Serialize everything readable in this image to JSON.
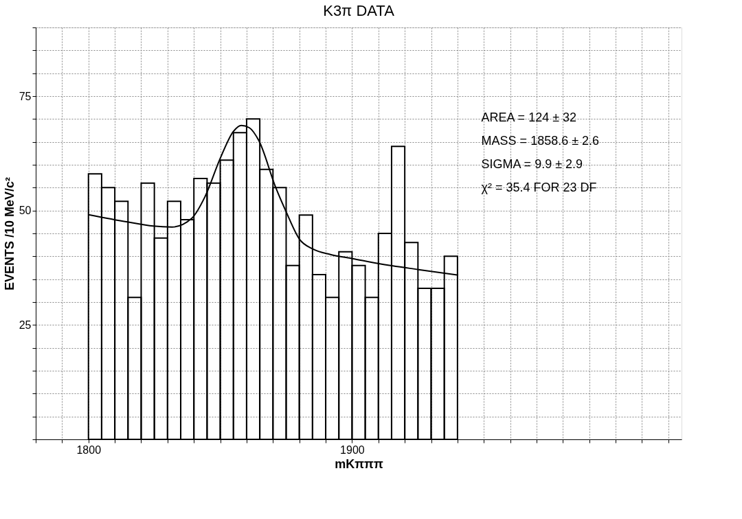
{
  "chart_data": {
    "type": "histogram",
    "title": "K3π DATA",
    "xlabel": "mKπππ",
    "ylabel": "EVENTS /10 MeV/c²",
    "bins": [
      1800,
      1805,
      1810,
      1815,
      1820,
      1825,
      1830,
      1835,
      1840,
      1845,
      1850,
      1855,
      1860,
      1865,
      1870,
      1875,
      1880,
      1885,
      1890,
      1895,
      1900,
      1905,
      1910,
      1915,
      1920,
      1925,
      1930,
      1935,
      1940
    ],
    "values": [
      58,
      55,
      52,
      31,
      56,
      44,
      52,
      48,
      57,
      56,
      61,
      67,
      70,
      59,
      55,
      38,
      49,
      36,
      31,
      41,
      38,
      31,
      45,
      64,
      43,
      33,
      33,
      40
    ],
    "color": "#000000",
    "series": [
      {
        "type": "line",
        "color": "#000000",
        "x": [
          1800,
          1814.8,
          1824.6,
          1831.7,
          1839.2,
          1844.2,
          1850,
          1855,
          1858,
          1861,
          1864.7,
          1871,
          1875.1,
          1880.1,
          1885.1,
          1891.8,
          1900.2,
          1910.2,
          1925.2,
          1940.3
        ],
        "values": [
          49.1,
          47.5,
          46.6,
          46.4,
          48.3,
          53,
          61.4,
          67.3,
          68.6,
          68.1,
          65.2,
          55.1,
          49.6,
          43.7,
          41.6,
          40.4,
          39.5,
          38.4,
          37.1,
          35.9
        ]
      }
    ],
    "xlim": [
      1780,
      2025
    ],
    "ylim": [
      0,
      90
    ],
    "xticks": [
      {
        "value": 1780,
        "label": null
      },
      {
        "value": 1790,
        "label": null
      },
      1800,
      {
        "value": 1810,
        "label": null
      },
      {
        "value": 1820,
        "label": null
      },
      {
        "value": 1830,
        "label": null
      },
      {
        "value": 1840,
        "label": null
      },
      {
        "value": 1850,
        "label": null
      },
      {
        "value": 1860,
        "label": null
      },
      {
        "value": 1870,
        "label": null
      },
      {
        "value": 1880,
        "label": null
      },
      {
        "value": 1890,
        "label": null
      },
      1900,
      {
        "value": 1910,
        "label": null
      },
      {
        "value": 1920,
        "label": null
      },
      {
        "value": 1930,
        "label": null
      },
      {
        "value": 1940,
        "label": null
      },
      {
        "value": 1950,
        "label": null
      },
      {
        "value": 1960,
        "label": null
      },
      {
        "value": 1970,
        "label": null
      },
      {
        "value": 1980,
        "label": null
      },
      {
        "value": 1990,
        "label": null
      },
      {
        "value": 2000,
        "label": null
      },
      {
        "value": 2010,
        "label": null
      },
      {
        "value": 2020,
        "label": null
      }
    ],
    "yticks": [
      {
        "value": 0,
        "label": null
      },
      {
        "value": 5,
        "label": null
      },
      {
        "value": 10,
        "label": null
      },
      {
        "value": 15,
        "label": null
      },
      {
        "value": 20,
        "label": null
      },
      25,
      {
        "value": 30,
        "label": null
      },
      {
        "value": 35,
        "label": null
      },
      {
        "value": 40,
        "label": null
      },
      {
        "value": 45,
        "label": null
      },
      50,
      {
        "value": 55,
        "label": null
      },
      {
        "value": 60,
        "label": null
      },
      {
        "value": 65,
        "label": null
      },
      {
        "value": 70,
        "label": null
      },
      75,
      {
        "value": 80,
        "label": null
      },
      {
        "value": 85,
        "label": null
      },
      {
        "value": 90,
        "label": null
      }
    ],
    "grid": true,
    "annotations": [
      "AREA = 124 ± 32",
      "MASS = 1858.6 ± 2.6",
      "SIGMA = 9.9 ± 2.9",
      "χ² = 35.4 FOR 23 DF"
    ]
  }
}
